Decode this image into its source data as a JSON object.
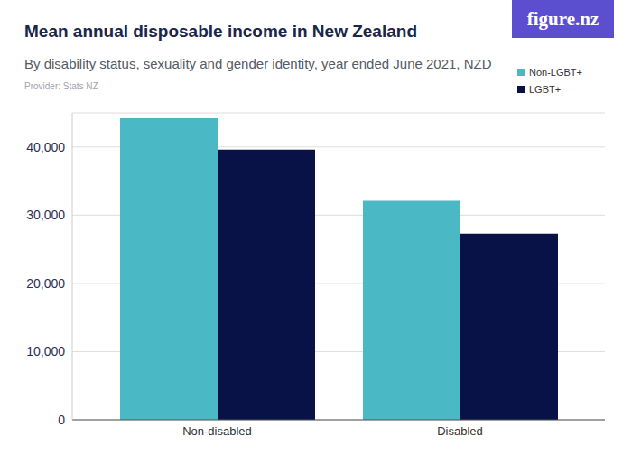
{
  "chart_data": {
    "type": "bar",
    "title": "Mean annual disposable income in New Zealand",
    "subtitle": "By disability status, sexuality and gender identity, year ended June 2021, NZD",
    "source": "Provider: Stats NZ",
    "logo": "figure.nz",
    "categories": [
      "Non-disabled",
      "Disabled"
    ],
    "series": [
      {
        "name": "Non-LGBT+",
        "color": "#4bb8c6",
        "values": [
          44200,
          32100
        ]
      },
      {
        "name": "LGBT+",
        "color": "#081246",
        "values": [
          39600,
          27300
        ]
      }
    ],
    "ylim": [
      0,
      45000
    ],
    "yticks": [
      0,
      {
        "value": 10000,
        "label": "10,000"
      },
      {
        "value": 20000,
        "label": "20,000"
      },
      {
        "value": 30000,
        "label": "30,000"
      },
      {
        "value": 40000,
        "label": "40,000"
      }
    ],
    "grid": true,
    "legend": "upper right"
  }
}
